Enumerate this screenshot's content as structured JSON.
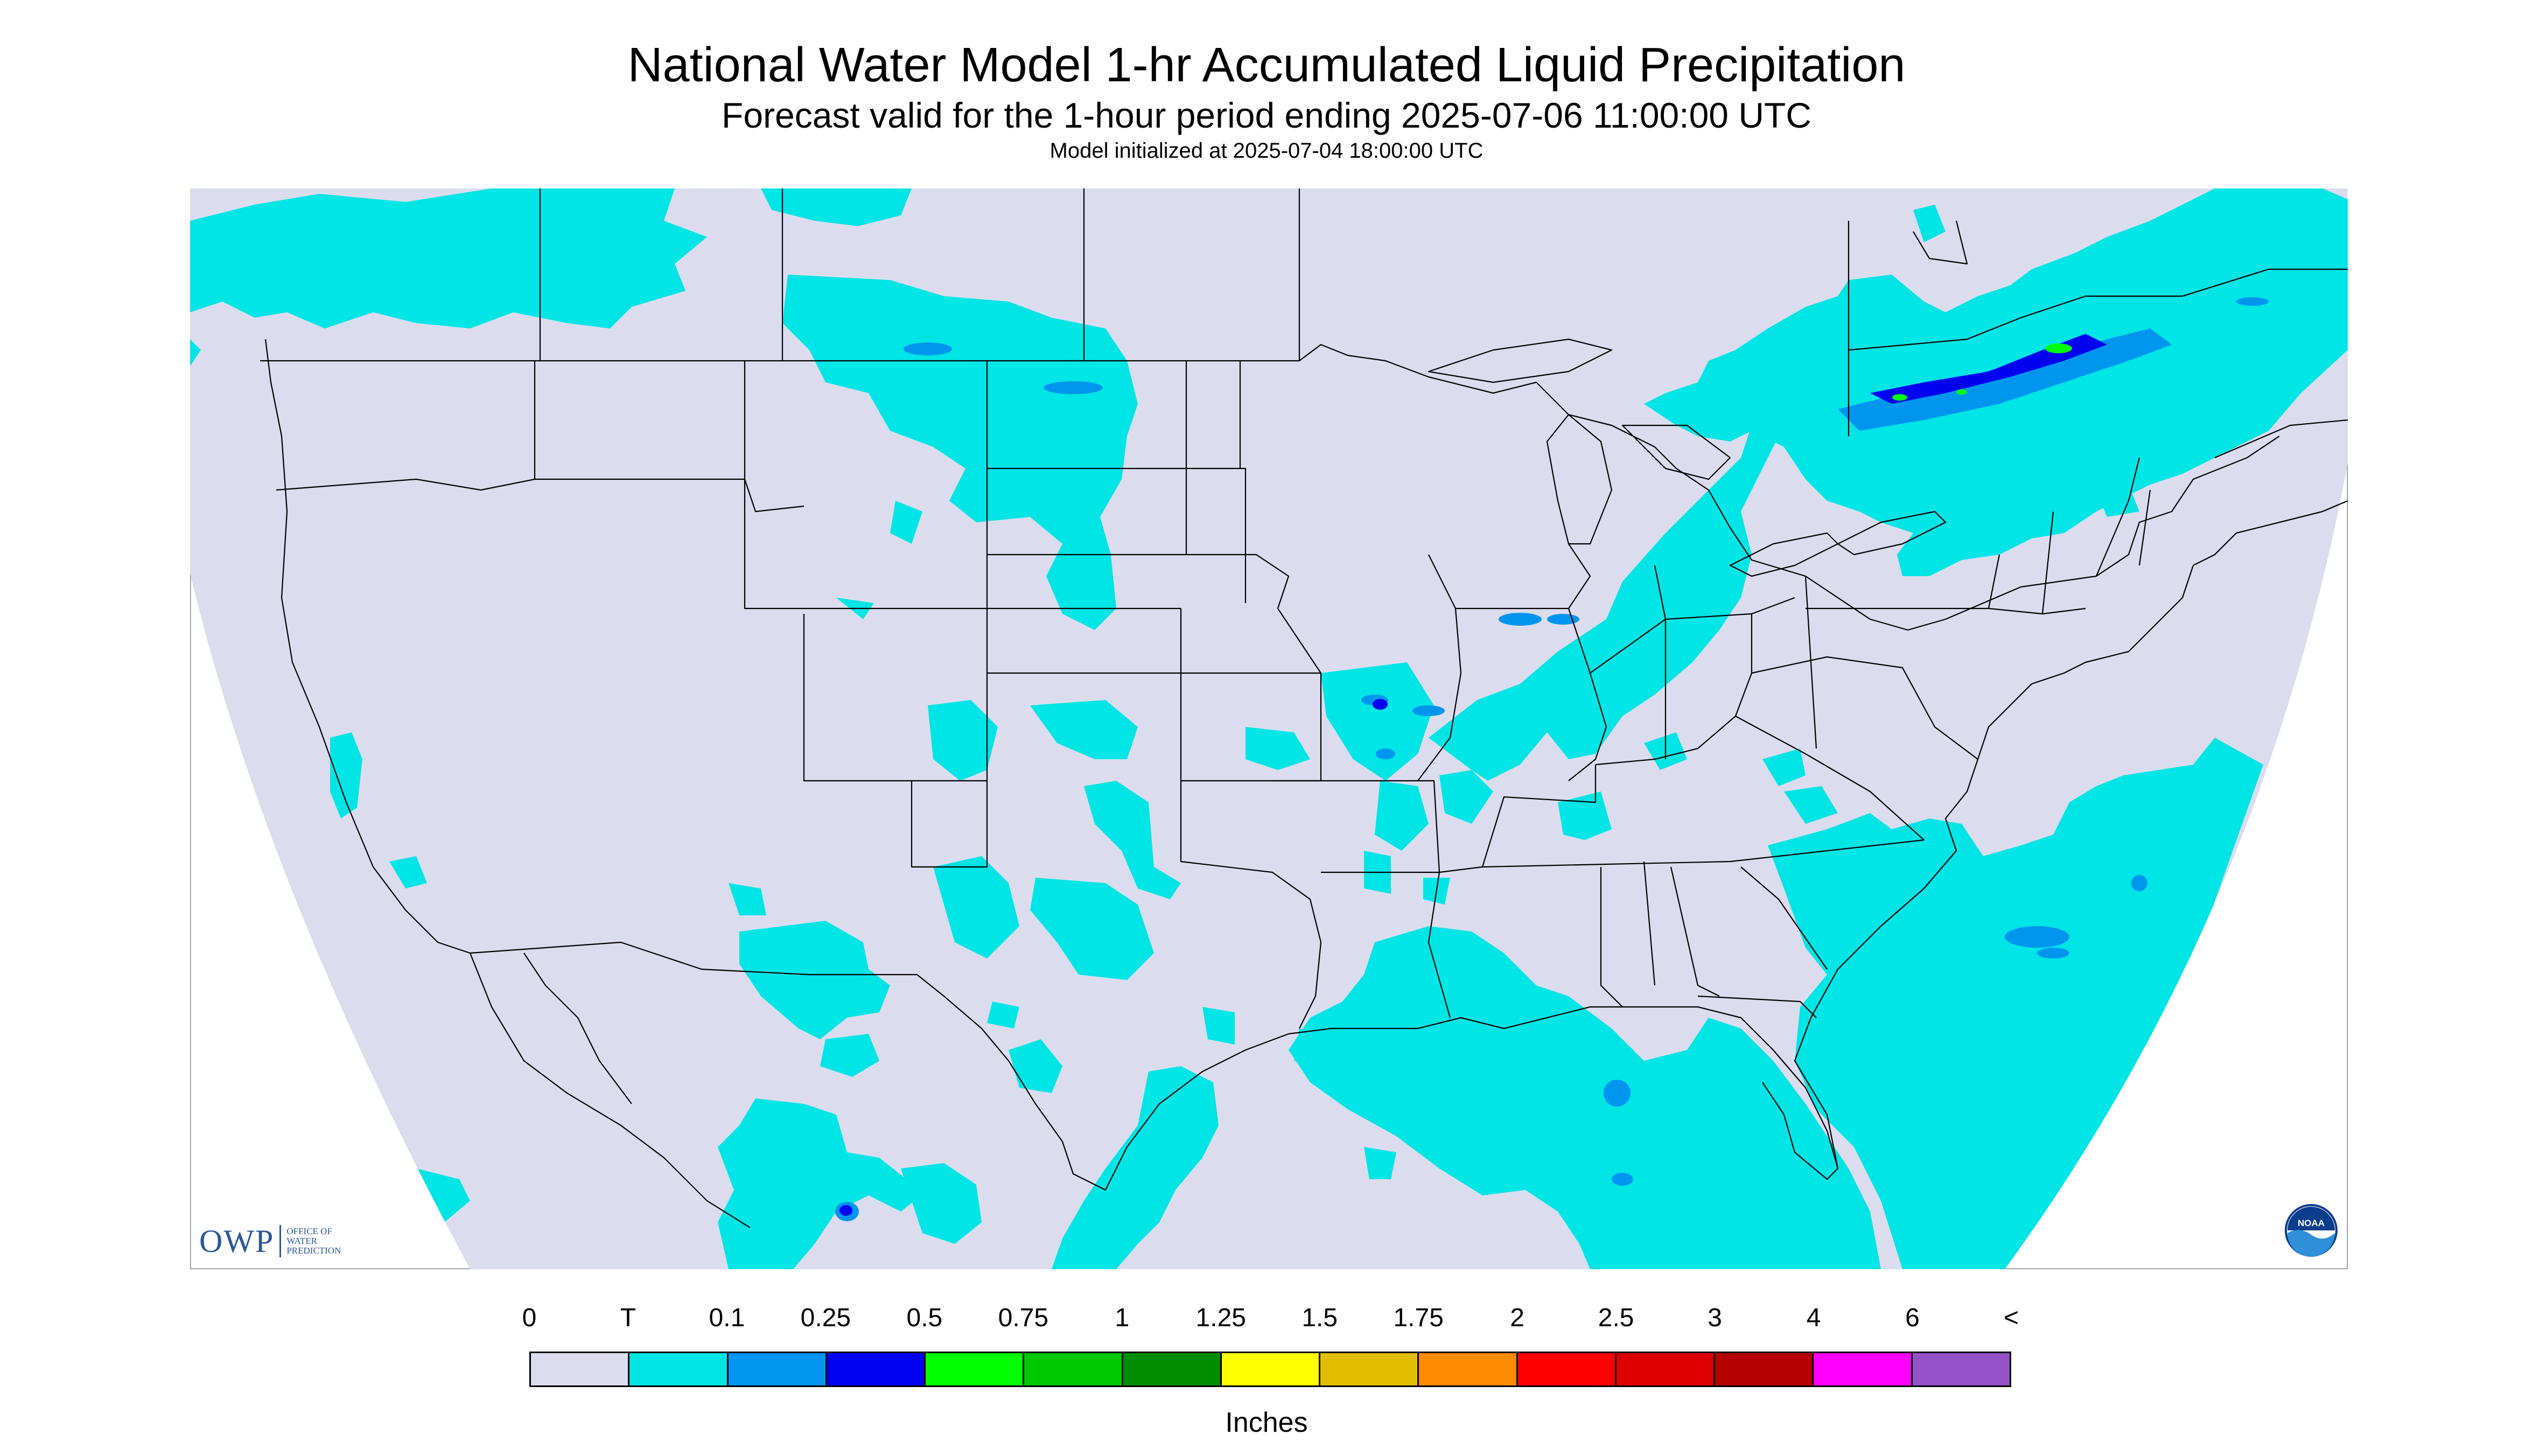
{
  "title": "National Water Model 1-hr Accumulated Liquid Precipitation",
  "subtitle": "Forecast valid for the 1-hour period ending 2025-07-06 11:00:00 UTC",
  "init": "Model initialized at 2025-07-04 18:00:00 UTC",
  "logos": {
    "owp_mark": "OWP",
    "owp_text": "OFFICE OF\nWATER\nPREDICTION",
    "noaa_text": "NOAA"
  },
  "legend": {
    "units": "Inches",
    "labels": [
      "0",
      "T",
      "0.1",
      "0.25",
      "0.5",
      "0.75",
      "1",
      "1.25",
      "1.5",
      "1.75",
      "2",
      "2.5",
      "3",
      "4",
      "6",
      "<"
    ],
    "colors": [
      "#dcdcef",
      "#00e5e5",
      "#0096f0",
      "#0000f0",
      "#00ff00",
      "#00c800",
      "#008c00",
      "#ffff00",
      "#e1be00",
      "#ff8c00",
      "#ff0000",
      "#dc0000",
      "#b40000",
      "#ff00ff",
      "#9650c8"
    ]
  },
  "map": {
    "background_color": "#dcdcef",
    "outside_color": "#ffffff",
    "boundary_color": "#000000"
  }
}
